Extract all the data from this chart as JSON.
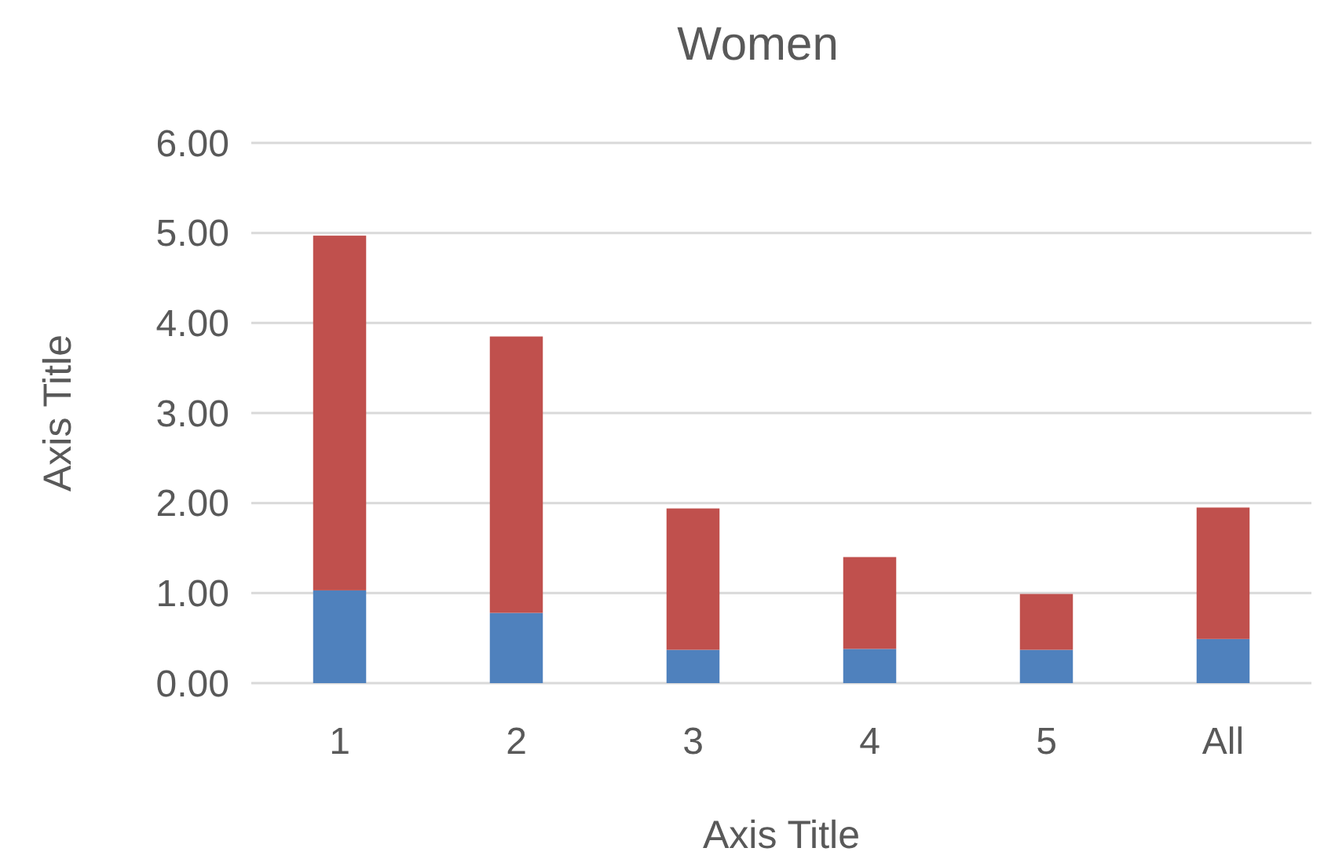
{
  "chart_data": {
    "type": "bar",
    "title": "Women",
    "xlabel": "Axis Title",
    "ylabel": "Axis Title",
    "categories": [
      "1",
      "2",
      "3",
      "4",
      "5",
      "All"
    ],
    "stacked": true,
    "series": [
      {
        "color": "#4f81bd",
        "values": [
          1.03,
          0.78,
          0.37,
          0.38,
          0.37,
          0.49
        ]
      },
      {
        "color": "#c0504d",
        "values": [
          3.94,
          3.07,
          1.57,
          1.02,
          0.62,
          1.46
        ]
      }
    ],
    "ylim": [
      0,
      6
    ],
    "yticks": [
      {
        "value": 0,
        "label": "0.00"
      },
      {
        "value": 1,
        "label": "1.00"
      },
      {
        "value": 2,
        "label": "2.00"
      },
      {
        "value": 3,
        "label": "3.00"
      },
      {
        "value": 4,
        "label": "4.00"
      },
      {
        "value": 5,
        "label": "5.00"
      },
      {
        "value": 6,
        "label": "6.00"
      }
    ],
    "grid": "y"
  }
}
